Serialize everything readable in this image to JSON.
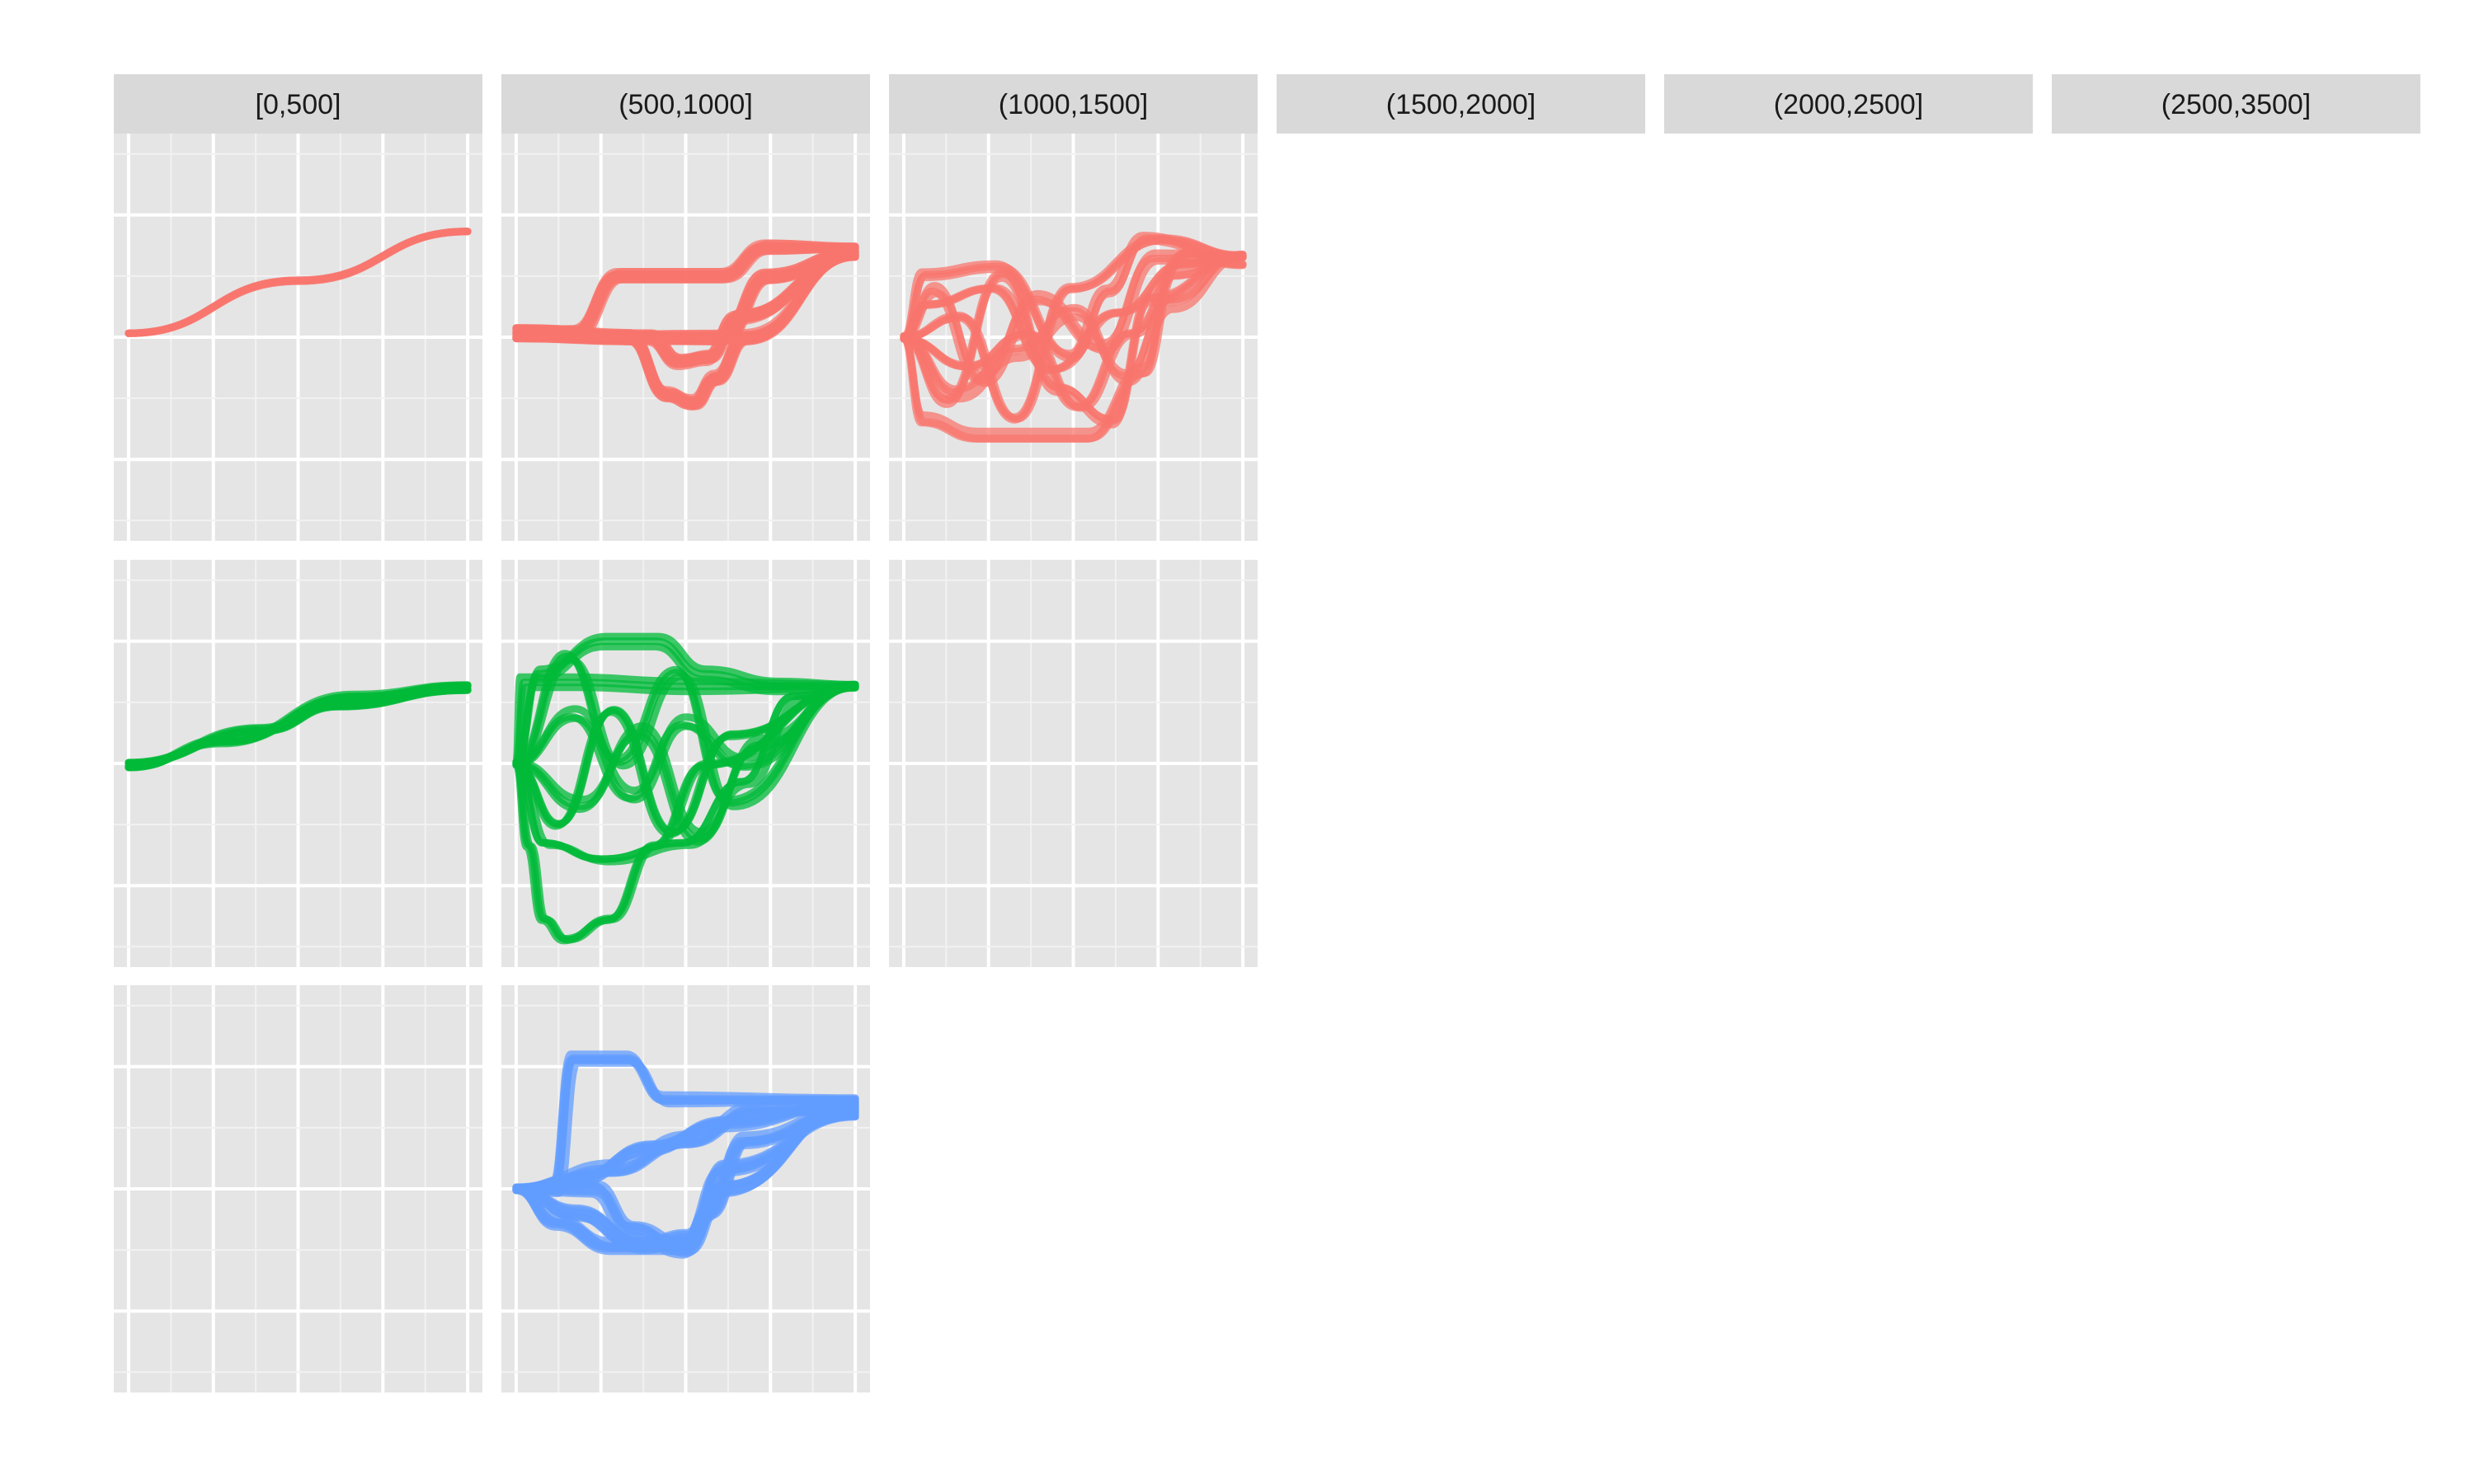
{
  "chart_data": {
    "type": "line",
    "title": "",
    "xlabel": "",
    "ylabel": "",
    "facet_columns": [
      "[0,500]",
      "(500,1000]",
      "(1000,1500]",
      "(1500,2000]",
      "(2000,2500]",
      "(2500,3500]"
    ],
    "facet_rows": [
      {
        "name": "",
        "color": "#F8766D"
      },
      {
        "name": "",
        "color": "#00BA38"
      },
      {
        "name": "",
        "color": "#619CFF"
      }
    ],
    "xlim": [
      0,
      1
    ],
    "ylim": [
      0,
      1
    ],
    "grid": true,
    "legend": "none",
    "panel_background": "#E5E5E5",
    "strip_background": "#D9D9D9",
    "panels": [
      {
        "row": 0,
        "col": 0,
        "lines": 4,
        "jitter": 0.003,
        "paths": [
          [
            [
              0.04,
              0.51
            ],
            [
              0.5,
              0.64
            ],
            [
              0.96,
              0.76
            ]
          ]
        ]
      },
      {
        "row": 0,
        "col": 1,
        "lines": 14,
        "jitter": 0.012,
        "paths": [
          [
            [
              0.04,
              0.51
            ],
            [
              0.2,
              0.51
            ],
            [
              0.32,
              0.65
            ],
            [
              0.6,
              0.65
            ],
            [
              0.72,
              0.72
            ],
            [
              0.96,
              0.72
            ]
          ],
          [
            [
              0.04,
              0.5
            ],
            [
              0.35,
              0.5
            ],
            [
              0.45,
              0.36
            ],
            [
              0.52,
              0.34
            ],
            [
              0.58,
              0.4
            ],
            [
              0.66,
              0.5
            ],
            [
              0.96,
              0.7
            ]
          ],
          [
            [
              0.04,
              0.52
            ],
            [
              0.4,
              0.5
            ],
            [
              0.48,
              0.44
            ],
            [
              0.56,
              0.45
            ],
            [
              0.64,
              0.55
            ],
            [
              0.96,
              0.7
            ]
          ],
          [
            [
              0.04,
              0.5
            ],
            [
              0.6,
              0.5
            ],
            [
              0.72,
              0.65
            ],
            [
              0.96,
              0.71
            ]
          ]
        ]
      },
      {
        "row": 0,
        "col": 2,
        "lines": 3,
        "jitter": 0.015,
        "paths": [
          [
            [
              0.04,
              0.5
            ],
            [
              0.1,
              0.66
            ],
            [
              0.3,
              0.68
            ],
            [
              0.5,
              0.46
            ],
            [
              0.6,
              0.62
            ],
            [
              0.7,
              0.75
            ],
            [
              0.96,
              0.68
            ]
          ],
          [
            [
              0.04,
              0.5
            ],
            [
              0.1,
              0.3
            ],
            [
              0.25,
              0.26
            ],
            [
              0.55,
              0.26
            ],
            [
              0.7,
              0.42
            ],
            [
              0.78,
              0.66
            ],
            [
              0.96,
              0.7
            ]
          ],
          [
            [
              0.04,
              0.5
            ],
            [
              0.2,
              0.55
            ],
            [
              0.35,
              0.3
            ],
            [
              0.5,
              0.62
            ],
            [
              0.75,
              0.74
            ],
            [
              0.96,
              0.7
            ]
          ],
          [
            [
              0.04,
              0.5
            ],
            [
              0.15,
              0.35
            ],
            [
              0.3,
              0.66
            ],
            [
              0.45,
              0.38
            ],
            [
              0.6,
              0.3
            ],
            [
              0.7,
              0.6
            ],
            [
              0.96,
              0.7
            ]
          ],
          [
            [
              0.04,
              0.5
            ],
            [
              0.12,
              0.62
            ],
            [
              0.25,
              0.4
            ],
            [
              0.4,
              0.6
            ],
            [
              0.58,
              0.48
            ],
            [
              0.72,
              0.7
            ],
            [
              0.96,
              0.7
            ]
          ],
          [
            [
              0.04,
              0.5
            ],
            [
              0.22,
              0.44
            ],
            [
              0.38,
              0.52
            ],
            [
              0.52,
              0.34
            ],
            [
              0.66,
              0.52
            ],
            [
              0.82,
              0.72
            ],
            [
              0.96,
              0.7
            ]
          ],
          [
            [
              0.04,
              0.5
            ],
            [
              0.1,
              0.58
            ],
            [
              0.28,
              0.62
            ],
            [
              0.44,
              0.42
            ],
            [
              0.62,
              0.56
            ],
            [
              0.8,
              0.68
            ],
            [
              0.96,
              0.7
            ]
          ],
          [
            [
              0.04,
              0.5
            ],
            [
              0.18,
              0.36
            ],
            [
              0.34,
              0.46
            ],
            [
              0.5,
              0.56
            ],
            [
              0.64,
              0.4
            ],
            [
              0.76,
              0.58
            ],
            [
              0.96,
              0.7
            ]
          ]
        ]
      },
      {
        "row": 1,
        "col": 0,
        "lines": 5,
        "jitter": 0.01,
        "paths": [
          [
            [
              0.04,
              0.5
            ],
            [
              0.4,
              0.58
            ],
            [
              0.6,
              0.64
            ],
            [
              0.96,
              0.68
            ]
          ],
          [
            [
              0.04,
              0.49
            ],
            [
              0.3,
              0.55
            ],
            [
              0.65,
              0.66
            ],
            [
              0.96,
              0.69
            ]
          ]
        ]
      },
      {
        "row": 1,
        "col": 1,
        "lines": 3,
        "jitter": 0.015,
        "paths": [
          [
            [
              0.04,
              0.5
            ],
            [
              0.1,
              0.72
            ],
            [
              0.28,
              0.8
            ],
            [
              0.42,
              0.8
            ],
            [
              0.55,
              0.72
            ],
            [
              0.75,
              0.69
            ],
            [
              0.96,
              0.69
            ]
          ],
          [
            [
              0.04,
              0.5
            ],
            [
              0.12,
              0.3
            ],
            [
              0.28,
              0.26
            ],
            [
              0.5,
              0.3
            ],
            [
              0.66,
              0.45
            ],
            [
              0.8,
              0.66
            ],
            [
              0.96,
              0.69
            ]
          ],
          [
            [
              0.04,
              0.5
            ],
            [
              0.2,
              0.62
            ],
            [
              0.36,
              0.42
            ],
            [
              0.5,
              0.6
            ],
            [
              0.66,
              0.5
            ],
            [
              0.96,
              0.69
            ]
          ],
          [
            [
              0.04,
              0.5
            ],
            [
              0.15,
              0.36
            ],
            [
              0.3,
              0.64
            ],
            [
              0.46,
              0.34
            ],
            [
              0.62,
              0.58
            ],
            [
              0.96,
              0.69
            ]
          ],
          [
            [
              0.04,
              0.5
            ],
            [
              0.18,
              0.76
            ],
            [
              0.32,
              0.5
            ],
            [
              0.48,
              0.72
            ],
            [
              0.62,
              0.4
            ],
            [
              0.96,
              0.69
            ]
          ],
          [
            [
              0.04,
              0.5
            ],
            [
              0.22,
              0.4
            ],
            [
              0.38,
              0.58
            ],
            [
              0.54,
              0.32
            ],
            [
              0.7,
              0.55
            ],
            [
              0.96,
              0.69
            ]
          ],
          [
            [
              0.04,
              0.5
            ],
            [
              0.08,
              0.3
            ],
            [
              0.12,
              0.12
            ],
            [
              0.18,
              0.07
            ],
            [
              0.3,
              0.12
            ],
            [
              0.42,
              0.3
            ],
            [
              0.56,
              0.5
            ],
            [
              0.96,
              0.69
            ]
          ],
          [
            [
              0.04,
              0.5
            ],
            [
              0.06,
              0.7
            ],
            [
              0.2,
              0.7
            ],
            [
              0.5,
              0.69
            ],
            [
              0.96,
              0.69
            ]
          ]
        ]
      },
      {
        "row": 1,
        "col": 2,
        "lines": 0,
        "jitter": 0,
        "paths": []
      },
      {
        "row": 2,
        "col": 0,
        "lines": 0,
        "jitter": 0,
        "paths": []
      },
      {
        "row": 2,
        "col": 1,
        "lines": 6,
        "jitter": 0.015,
        "paths": [
          [
            [
              0.04,
              0.5
            ],
            [
              0.15,
              0.5
            ],
            [
              0.2,
              0.82
            ],
            [
              0.35,
              0.82
            ],
            [
              0.45,
              0.72
            ],
            [
              0.96,
              0.72
            ]
          ],
          [
            [
              0.04,
              0.5
            ],
            [
              0.25,
              0.5
            ],
            [
              0.35,
              0.4
            ],
            [
              0.5,
              0.35
            ],
            [
              0.6,
              0.5
            ],
            [
              0.96,
              0.7
            ]
          ],
          [
            [
              0.04,
              0.5
            ],
            [
              0.2,
              0.44
            ],
            [
              0.38,
              0.36
            ],
            [
              0.5,
              0.38
            ],
            [
              0.6,
              0.55
            ],
            [
              0.96,
              0.68
            ]
          ],
          [
            [
              0.04,
              0.5
            ],
            [
              0.3,
              0.55
            ],
            [
              0.5,
              0.62
            ],
            [
              0.7,
              0.7
            ],
            [
              0.96,
              0.69
            ]
          ],
          [
            [
              0.04,
              0.5
            ],
            [
              0.2,
              0.52
            ],
            [
              0.4,
              0.6
            ],
            [
              0.6,
              0.66
            ],
            [
              0.96,
              0.71
            ]
          ],
          [
            [
              0.04,
              0.5
            ],
            [
              0.15,
              0.42
            ],
            [
              0.3,
              0.36
            ],
            [
              0.5,
              0.36
            ],
            [
              0.56,
              0.44
            ],
            [
              0.66,
              0.62
            ],
            [
              0.96,
              0.7
            ]
          ]
        ]
      }
    ]
  }
}
